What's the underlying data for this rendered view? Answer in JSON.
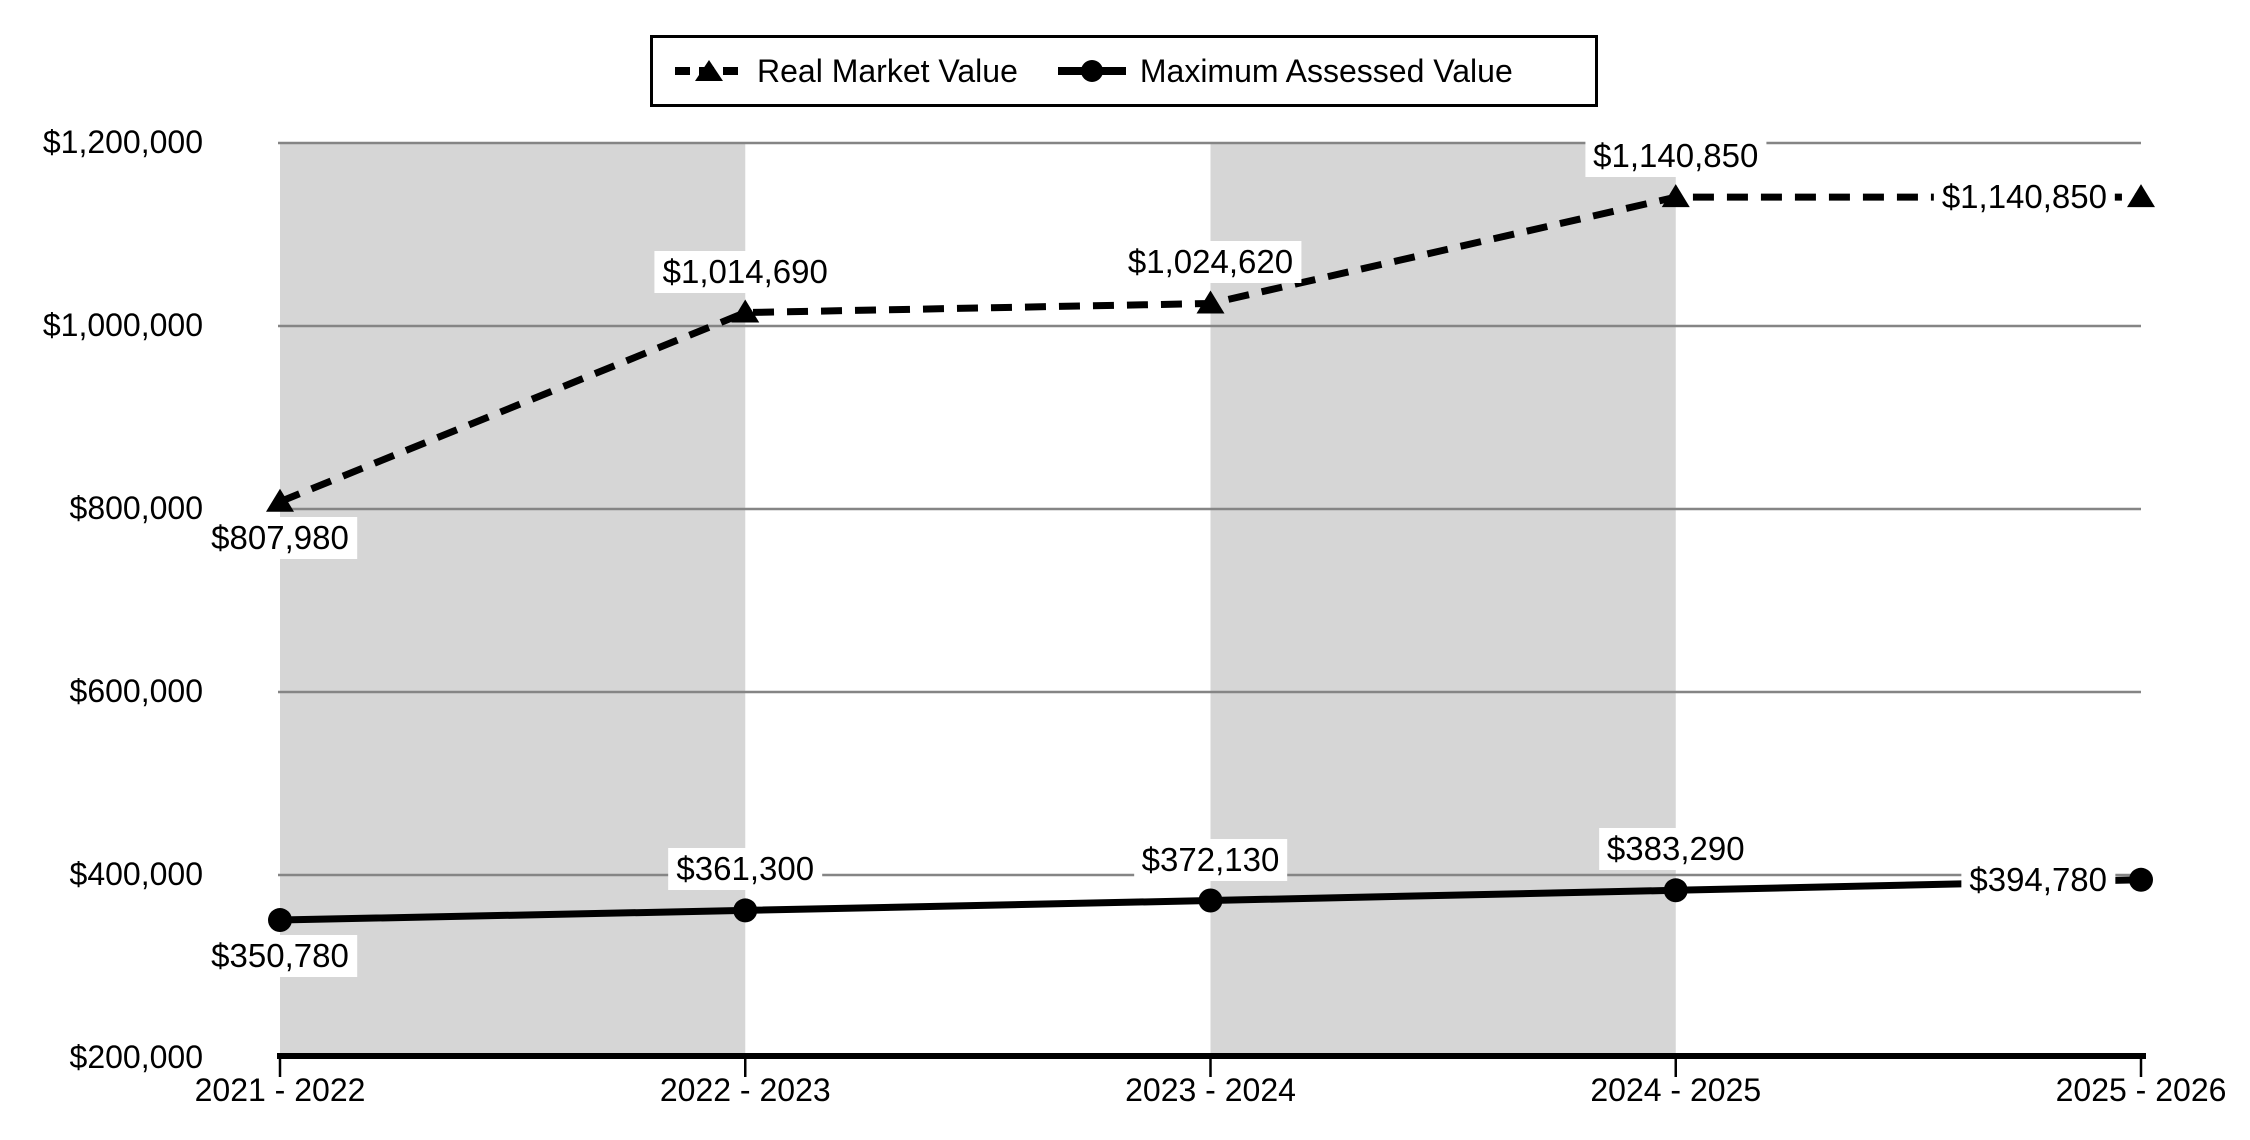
{
  "chart_data": {
    "type": "line",
    "title": "",
    "xlabel": "",
    "ylabel": "",
    "categories": [
      "2021 - 2022",
      "2022 - 2023",
      "2023 - 2024",
      "2024 - 2025",
      "2025 - 2026"
    ],
    "series": [
      {
        "name": "Real Market Value",
        "line_style": "dashed",
        "marker": "triangle",
        "values": [
          807980,
          1014690,
          1024620,
          1140850,
          1140850
        ],
        "labels": [
          "$807,980",
          "$1,014,690",
          "$1,024,620",
          "$1,140,850",
          "$1,140,850"
        ]
      },
      {
        "name": "Maximum Assessed Value",
        "line_style": "solid",
        "marker": "circle",
        "values": [
          350780,
          361300,
          372130,
          383290,
          394780
        ],
        "labels": [
          "$350,780",
          "$361,300",
          "$372,130",
          "$383,290",
          "$394,780"
        ]
      }
    ],
    "y_axis": {
      "min": 200000,
      "max": 1200000,
      "step": 200000,
      "tick_labels": [
        "$200,000",
        "$400,000",
        "$600,000",
        "$800,000",
        "$1,000,000",
        "$1,200,000"
      ]
    },
    "ylim": [
      200000,
      1200000
    ],
    "grid": "horizontal",
    "legend_position": "top-center",
    "shaded_band_pairs": [
      [
        0,
        1
      ],
      [
        2,
        3
      ]
    ],
    "colors": {
      "series": "#000000",
      "shaded_band": "#d6d6d6",
      "gridline": "#858585",
      "axis": "#000000",
      "label_background": "#ffffff",
      "background": "#ffffff"
    }
  }
}
